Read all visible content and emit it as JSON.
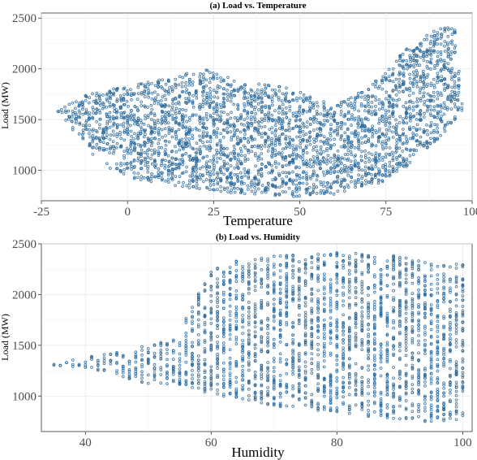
{
  "chart_data": [
    {
      "type": "scatter",
      "title": "(a) Load vs. Temperature",
      "xlabel": "Temperature",
      "ylabel": "Load (MW)",
      "xlim": [
        -25,
        100
      ],
      "ylim": [
        700,
        2550
      ],
      "xticks": [
        -25,
        0,
        25,
        50,
        75,
        100
      ],
      "xtick_labels": [
        "-25",
        "0",
        "25",
        "50",
        "75",
        "100"
      ],
      "yticks": [
        1000,
        1500,
        2000,
        2500
      ],
      "ytick_labels": [
        "1000",
        "1500",
        "2000",
        "2500"
      ],
      "grid": true,
      "marker_color": "#2c6a9c",
      "envelope": {
        "x": [
          -20,
          -15,
          -10,
          -5,
          0,
          5,
          10,
          15,
          20,
          25,
          30,
          35,
          40,
          45,
          50,
          55,
          60,
          65,
          70,
          75,
          80,
          85,
          90,
          95,
          97
        ],
        "y_min": [
          1580,
          1350,
          1150,
          1020,
          940,
          890,
          860,
          840,
          810,
          800,
          780,
          760,
          760,
          740,
          740,
          760,
          760,
          780,
          820,
          900,
          1000,
          1150,
          1300,
          1500,
          1580
        ],
        "y_max": [
          1580,
          1700,
          1760,
          1800,
          1830,
          1880,
          1900,
          1930,
          1990,
          1990,
          1900,
          1860,
          1850,
          1820,
          1780,
          1700,
          1640,
          1720,
          1820,
          1970,
          2180,
          2280,
          2420,
          2400,
          1700
        ]
      }
    },
    {
      "type": "scatter",
      "title": "(b) Load vs. Humidity",
      "xlabel": "Humidity",
      "ylabel": "Load (MW)",
      "xlim": [
        33,
        101.5
      ],
      "ylim": [
        650,
        2500
      ],
      "xticks": [
        40,
        60,
        80,
        100
      ],
      "xtick_labels": [
        "40",
        "60",
        "80",
        "100"
      ],
      "yticks": [
        1000,
        1500,
        2000,
        2500
      ],
      "ytick_labels": [
        "1000",
        "1500",
        "2000",
        "2500"
      ],
      "grid": true,
      "marker_color": "#2c6a9c",
      "envelope": {
        "x": [
          35,
          40,
          45,
          50,
          55,
          58,
          60,
          65,
          70,
          75,
          80,
          85,
          90,
          95,
          100
        ],
        "y_min": [
          1300,
          1260,
          1200,
          1120,
          1100,
          1050,
          1000,
          960,
          900,
          880,
          820,
          800,
          760,
          740,
          770
        ],
        "y_max": [
          1320,
          1380,
          1440,
          1500,
          1600,
          2100,
          2250,
          2350,
          2380,
          2400,
          2420,
          2400,
          2380,
          2300,
          2300
        ]
      }
    }
  ]
}
